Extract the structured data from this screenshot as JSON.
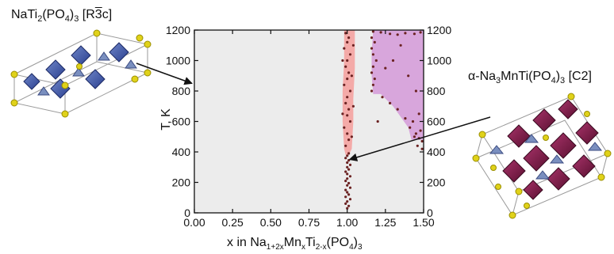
{
  "chart_data": {
    "type": "scatter",
    "title": "",
    "xlabel": {
      "prefix": "x in Na",
      "sub1": "1+2x",
      "mid1": "Mn",
      "sub2": "x",
      "mid2": "Ti",
      "sub3": "2-x",
      "mid3": "(PO",
      "sub4": "4",
      "end": ")",
      "sub5": "3"
    },
    "ylabel": "T, K",
    "xlim": [
      0,
      1.5
    ],
    "ylim": [
      0,
      1200
    ],
    "grid": false,
    "x_ticks": [
      "0.00",
      "0.25",
      "0.50",
      "0.75",
      "1.00",
      "1.25",
      "1.50"
    ],
    "y_ticks": [
      "0",
      "200",
      "400",
      "600",
      "800",
      "1000",
      "1200"
    ],
    "y_ticks_right": [
      "0",
      "200",
      "400",
      "600",
      "800",
      "1000",
      "1200"
    ],
    "colors": {
      "background_phase": "#ececec",
      "single_phase_band": "#f4aaa8",
      "second_phase_region": "#d8a6dc",
      "points": "#6b2222"
    },
    "regions": [
      {
        "phase": "NaTi2(PO4)3 (R-3c)",
        "color": "#ececec",
        "polygon": [
          [
            0,
            0
          ],
          [
            1.5,
            0
          ],
          [
            1.5,
            1200
          ],
          [
            0,
            1200
          ]
        ]
      },
      {
        "phase": "single phase band near x = 1",
        "color": "#f4aaa8",
        "polygon": [
          [
            0.98,
            1200
          ],
          [
            1.05,
            1200
          ],
          [
            1.05,
            950
          ],
          [
            1.04,
            750
          ],
          [
            1.04,
            600
          ],
          [
            1.03,
            420
          ],
          [
            1.01,
            380
          ],
          [
            0.99,
            380
          ],
          [
            0.98,
            420
          ],
          [
            0.97,
            600
          ],
          [
            0.97,
            800
          ],
          [
            0.98,
            1000
          ]
        ]
      },
      {
        "phase": "alpha-Na3MnTi(PO4)3 (C2) coexistence",
        "color": "#d8a6dc",
        "polygon": [
          [
            1.17,
            1200
          ],
          [
            1.5,
            1200
          ],
          [
            1.5,
            480
          ],
          [
            1.42,
            480
          ],
          [
            1.4,
            560
          ],
          [
            1.3,
            700
          ],
          [
            1.22,
            780
          ],
          [
            1.17,
            780
          ],
          [
            1.16,
            900
          ],
          [
            1.16,
            1050
          ]
        ]
      }
    ],
    "series": [
      {
        "values": [
          [
            1.0,
            30
          ],
          [
            1.01,
            45
          ],
          [
            0.99,
            60
          ],
          [
            1.0,
            75
          ],
          [
            1.02,
            90
          ],
          [
            0.99,
            105
          ],
          [
            1.01,
            120
          ],
          [
            1.0,
            135
          ],
          [
            0.99,
            150
          ],
          [
            1.02,
            165
          ],
          [
            1.0,
            180
          ],
          [
            1.01,
            195
          ],
          [
            0.99,
            210
          ],
          [
            1.0,
            225
          ],
          [
            1.02,
            240
          ],
          [
            1.0,
            255
          ],
          [
            0.99,
            270
          ],
          [
            1.01,
            285
          ],
          [
            1.0,
            300
          ],
          [
            1.02,
            315
          ],
          [
            1.0,
            330
          ],
          [
            1.01,
            345
          ],
          [
            0.99,
            360
          ],
          [
            1.0,
            375
          ],
          [
            1.01,
            390
          ],
          [
            0.99,
            1180
          ],
          [
            1.01,
            1150
          ],
          [
            1.0,
            1120
          ],
          [
            0.98,
            1080
          ],
          [
            1.02,
            1040
          ],
          [
            1.0,
            1000
          ],
          [
            0.99,
            960
          ],
          [
            1.01,
            920
          ],
          [
            1.0,
            880
          ],
          [
            0.98,
            840
          ],
          [
            1.02,
            800
          ],
          [
            1.0,
            760
          ],
          [
            0.99,
            720
          ],
          [
            1.01,
            680
          ],
          [
            1.0,
            640
          ],
          [
            1.02,
            600
          ],
          [
            0.98,
            560
          ],
          [
            1.0,
            520
          ],
          [
            1.01,
            480
          ],
          [
            0.99,
            440
          ],
          [
            1.04,
            1100
          ],
          [
            1.03,
            900
          ],
          [
            1.04,
            700
          ],
          [
            1.03,
            500
          ],
          [
            0.97,
            1000
          ],
          [
            0.97,
            650
          ],
          [
            1.17,
            1190
          ],
          [
            1.16,
            1150
          ],
          [
            1.18,
            1120
          ],
          [
            1.16,
            1080
          ],
          [
            1.17,
            1040
          ],
          [
            1.19,
            1000
          ],
          [
            1.17,
            960
          ],
          [
            1.16,
            920
          ],
          [
            1.18,
            880
          ],
          [
            1.17,
            840
          ],
          [
            1.16,
            800
          ],
          [
            1.22,
            1185
          ],
          [
            1.28,
            1175
          ],
          [
            1.33,
            1170
          ],
          [
            1.38,
            1180
          ],
          [
            1.44,
            1175
          ],
          [
            1.48,
            1185
          ],
          [
            1.23,
            760
          ],
          [
            1.28,
            720
          ],
          [
            1.33,
            680
          ],
          [
            1.38,
            620
          ],
          [
            1.41,
            560
          ],
          [
            1.44,
            500
          ],
          [
            1.47,
            490
          ],
          [
            1.49,
            470
          ],
          [
            1.45,
            520
          ],
          [
            1.48,
            540
          ],
          [
            1.3,
            1000
          ],
          [
            1.4,
            900
          ],
          [
            1.35,
            1100
          ],
          [
            1.45,
            800
          ],
          [
            1.25,
            950
          ],
          [
            1.47,
            650
          ],
          [
            1.43,
            600
          ],
          [
            1.2,
            600
          ],
          [
            1.49,
            420
          ],
          [
            1.46,
            440
          ]
        ]
      }
    ]
  },
  "annotations": {
    "left_structure": {
      "pre": "NaTi",
      "s1": "2",
      "mid": "(PO",
      "s2": "4",
      "post": ")",
      "s3": "3",
      "group": "[R",
      "bar": "3",
      "group_end": "c]"
    },
    "right_structure": {
      "pre": "α-Na",
      "s1": "3",
      "mid": "MnTi(PO",
      "s2": "4",
      "post": ")",
      "s3": "3",
      "group": "[C2]"
    }
  }
}
